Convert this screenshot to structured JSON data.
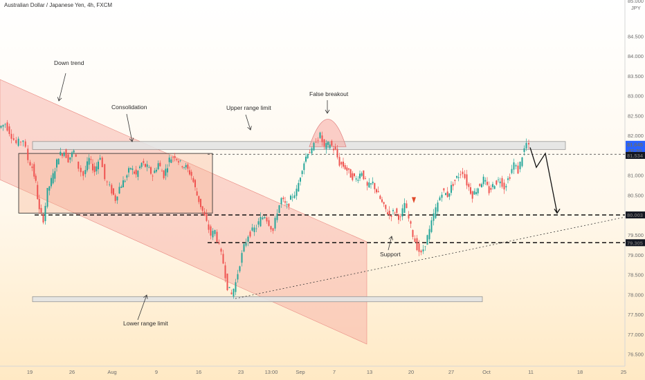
{
  "header": {
    "title": "Australian Dollar / Japanese Yen, 4h, FXCM"
  },
  "price_axis": {
    "currency": "JPY",
    "top_clipped": "85.000",
    "current_time": "47:20"
  },
  "chart_data": {
    "type": "candlestick",
    "title": "Australian Dollar / Japanese Yen, 4h, FXCM",
    "ylim": [
      76.2,
      85.2
    ],
    "y_ticks": [
      "84.500",
      "84.000",
      "83.500",
      "83.000",
      "82.500",
      "82.000",
      "81.500",
      "81.000",
      "80.500",
      "80.000",
      "79.500",
      "79.000",
      "78.500",
      "78.000",
      "77.500",
      "77.000",
      "76.500"
    ],
    "x_ticks": [
      "19",
      "26",
      "Aug",
      "9",
      "16",
      "23",
      "13:00",
      "Sep",
      "7",
      "13",
      "20",
      "27",
      "Oct",
      "11",
      "18",
      "25"
    ],
    "price_tags": [
      {
        "value": "81.645",
        "color": "#2962ff"
      },
      {
        "value": "81.534",
        "color": "#131722"
      },
      {
        "value": "80.003",
        "color": "#131722"
      },
      {
        "value": "79.305",
        "color": "#131722"
      }
    ],
    "annotations": [
      {
        "text": "Down trend"
      },
      {
        "text": "Consolidation"
      },
      {
        "text": "Upper range limit"
      },
      {
        "text": "False breakout"
      },
      {
        "text": "Support"
      },
      {
        "text": "Lower range limit"
      }
    ],
    "levels": {
      "upper_range_limit": 81.73,
      "resistance_dashed": 81.53,
      "support_dashed": 80.003,
      "lower_dashed": 79.305,
      "lower_range_limit": 77.88
    },
    "price_path_points": [
      [
        0,
        82.2
      ],
      [
        9,
        82.3
      ],
      [
        18,
        82.0
      ],
      [
        25,
        81.8
      ],
      [
        35,
        81.9
      ],
      [
        42,
        81.4
      ],
      [
        48,
        81.2
      ],
      [
        53,
        80.8
      ],
      [
        58,
        80.1
      ],
      [
        64,
        79.9
      ],
      [
        70,
        80.6
      ],
      [
        78,
        81.0
      ],
      [
        86,
        81.5
      ],
      [
        94,
        81.6
      ],
      [
        100,
        81.4
      ],
      [
        108,
        81.6
      ],
      [
        115,
        81.2
      ],
      [
        122,
        81.0
      ],
      [
        130,
        81.4
      ],
      [
        138,
        81.1
      ],
      [
        146,
        81.5
      ],
      [
        153,
        80.9
      ],
      [
        160,
        80.7
      ],
      [
        168,
        80.4
      ],
      [
        174,
        80.7
      ],
      [
        182,
        80.9
      ],
      [
        190,
        81.2
      ],
      [
        198,
        81.0
      ],
      [
        206,
        81.3
      ],
      [
        214,
        81.2
      ],
      [
        222,
        81.0
      ],
      [
        230,
        81.3
      ],
      [
        238,
        81.0
      ],
      [
        246,
        81.4
      ],
      [
        254,
        81.5
      ],
      [
        262,
        81.3
      ],
      [
        270,
        81.2
      ],
      [
        278,
        81.0
      ],
      [
        286,
        80.5
      ],
      [
        294,
        80.1
      ],
      [
        300,
        79.8
      ],
      [
        306,
        79.5
      ],
      [
        312,
        79.6
      ],
      [
        318,
        79.2
      ],
      [
        324,
        78.8
      ],
      [
        330,
        78.2
      ],
      [
        336,
        78.0
      ],
      [
        342,
        78.3
      ],
      [
        348,
        78.8
      ],
      [
        354,
        79.2
      ],
      [
        360,
        79.5
      ],
      [
        366,
        79.6
      ],
      [
        372,
        79.7
      ],
      [
        378,
        79.9
      ],
      [
        384,
        80.0
      ],
      [
        390,
        79.8
      ],
      [
        396,
        79.6
      ],
      [
        402,
        80.1
      ],
      [
        408,
        80.4
      ],
      [
        416,
        80.2
      ],
      [
        424,
        80.5
      ],
      [
        430,
        80.6
      ],
      [
        438,
        81.2
      ],
      [
        446,
        81.6
      ],
      [
        452,
        81.6
      ],
      [
        458,
        81.9
      ],
      [
        464,
        82.0
      ],
      [
        470,
        81.7
      ],
      [
        478,
        81.8
      ],
      [
        486,
        81.6
      ],
      [
        492,
        81.3
      ],
      [
        500,
        81.2
      ],
      [
        508,
        81.0
      ],
      [
        516,
        80.9
      ],
      [
        524,
        81.1
      ],
      [
        532,
        80.7
      ],
      [
        540,
        80.8
      ],
      [
        548,
        80.5
      ],
      [
        556,
        80.2
      ],
      [
        564,
        80.0
      ],
      [
        572,
        80.1
      ],
      [
        580,
        79.9
      ],
      [
        586,
        80.3
      ],
      [
        592,
        79.9
      ],
      [
        598,
        79.5
      ],
      [
        604,
        79.2
      ],
      [
        610,
        79.0
      ],
      [
        616,
        79.3
      ],
      [
        622,
        79.6
      ],
      [
        628,
        80.0
      ],
      [
        634,
        80.3
      ],
      [
        640,
        80.6
      ],
      [
        648,
        80.5
      ],
      [
        656,
        80.8
      ],
      [
        664,
        81.0
      ],
      [
        670,
        81.1
      ],
      [
        676,
        80.8
      ],
      [
        684,
        80.5
      ],
      [
        692,
        80.7
      ],
      [
        700,
        80.9
      ],
      [
        708,
        80.6
      ],
      [
        716,
        80.8
      ],
      [
        724,
        80.9
      ],
      [
        730,
        80.7
      ],
      [
        738,
        81.0
      ],
      [
        744,
        81.3
      ],
      [
        750,
        81.1
      ],
      [
        756,
        81.5
      ],
      [
        762,
        81.8
      ],
      [
        766,
        81.7
      ]
    ],
    "projection": [
      [
        766,
        81.7
      ],
      [
        775,
        81.2
      ],
      [
        788,
        81.55
      ],
      [
        805,
        80.05
      ]
    ]
  }
}
